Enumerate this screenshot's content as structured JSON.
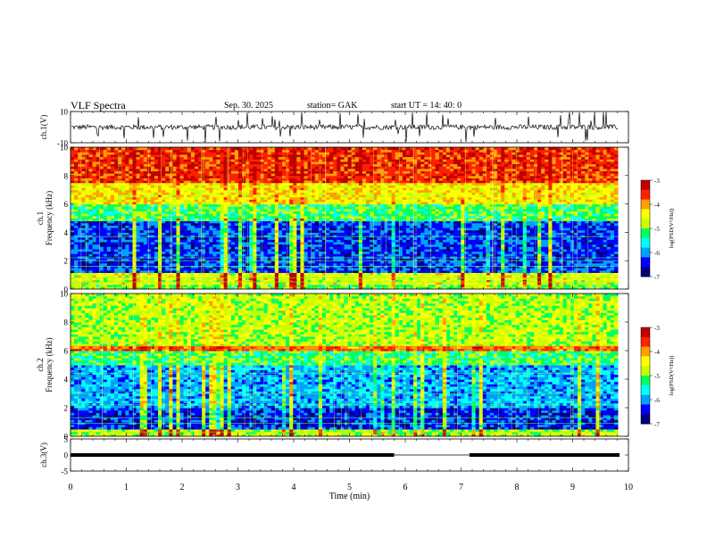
{
  "header": {
    "title": "VLF  Spectra",
    "date": "Sep. 30. 2025",
    "station": "station= GAK",
    "start": "start  UT  =     14: 40: 0"
  },
  "chart_data": [
    {
      "type": "line",
      "panel": "ch1-waveform",
      "ylabel": "ch.1(V)",
      "ylim": [
        -10,
        10
      ],
      "y_ticks": [
        "10",
        "-10"
      ],
      "xlim": [
        0,
        10
      ],
      "baseline": 0,
      "note_series": "noisy waveform with spikes to about -10 and +10"
    },
    {
      "type": "heatmap",
      "panel": "ch1-spectrogram",
      "ylabel": "ch.1\nFrequency (kHz)",
      "ylabel_lines": [
        "ch.1",
        "Frequency (kHz)"
      ],
      "ylim": [
        0,
        10
      ],
      "y_ticks": [
        "0",
        "2",
        "4",
        "6",
        "8",
        "10"
      ],
      "xlim": [
        0,
        9.84
      ],
      "bands": [
        {
          "from_khz": 0,
          "to_khz": 0.3,
          "level": -5.0
        },
        {
          "from_khz": 0.3,
          "to_khz": 1.2,
          "level": -4.6
        },
        {
          "from_khz": 1.2,
          "to_khz": 4.8,
          "level": -6.3
        },
        {
          "from_khz": 4.8,
          "to_khz": 6.0,
          "level": -5.2
        },
        {
          "from_khz": 6.0,
          "to_khz": 7.5,
          "level": -4.4
        },
        {
          "from_khz": 7.5,
          "to_khz": 10,
          "level": -3.6
        }
      ],
      "colorbar": {
        "label": "log(PSD(V²/Hz))",
        "min": -7,
        "max": -3,
        "ticks": [
          "-3",
          "-4",
          "-5",
          "-6",
          "-7"
        ]
      }
    },
    {
      "type": "heatmap",
      "panel": "ch2-spectrogram",
      "ylabel": "ch.2\nFrequency (kHz)",
      "ylabel_lines": [
        "ch.2",
        "Frequency (kHz)"
      ],
      "ylim": [
        0,
        10
      ],
      "y_ticks": [
        "0",
        "2",
        "4",
        "6",
        "8",
        "10"
      ],
      "xlim": [
        0,
        9.84
      ],
      "bands": [
        {
          "from_khz": 0,
          "to_khz": 0.5,
          "level": -4.8
        },
        {
          "from_khz": 0.5,
          "to_khz": 2.0,
          "level": -6.4
        },
        {
          "from_khz": 2.0,
          "to_khz": 5.0,
          "level": -5.9
        },
        {
          "from_khz": 5.0,
          "to_khz": 6.0,
          "level": -5.2
        },
        {
          "from_khz": 6.0,
          "to_khz": 6.3,
          "level": -3.8
        },
        {
          "from_khz": 6.3,
          "to_khz": 10,
          "level": -4.8
        }
      ],
      "colorbar": {
        "label": "log(PSD(V²/Hz))",
        "min": -7,
        "max": -3,
        "ticks": [
          "-3",
          "-4",
          "-5",
          "-6",
          "-7"
        ]
      }
    },
    {
      "type": "line",
      "panel": "ch3-signal",
      "ylabel": "ch.3(V)",
      "ylim": [
        -5,
        5
      ],
      "y_ticks": [
        "5",
        "0",
        "-5"
      ],
      "xlim": [
        0,
        10
      ],
      "segments": [
        {
          "x0": 0,
          "x1": 5.8,
          "y": 0,
          "style": "dense"
        },
        {
          "x0": 5.8,
          "x1": 7.15,
          "y": 0,
          "style": "thin"
        },
        {
          "x0": 7.15,
          "x1": 9.84,
          "y": 0,
          "style": "dense"
        }
      ]
    }
  ],
  "xaxis": {
    "label": "Time  (min)",
    "ticks": [
      "0",
      "1",
      "2",
      "3",
      "4",
      "5",
      "6",
      "7",
      "8",
      "9",
      "10"
    ],
    "xlim": [
      0,
      10
    ]
  },
  "colors": {
    "scale": [
      "#00007a",
      "#0000ff",
      "#00a0ff",
      "#00ffff",
      "#00ff60",
      "#c8ff00",
      "#ffff00",
      "#ffa000",
      "#ff2000",
      "#c00000"
    ]
  }
}
